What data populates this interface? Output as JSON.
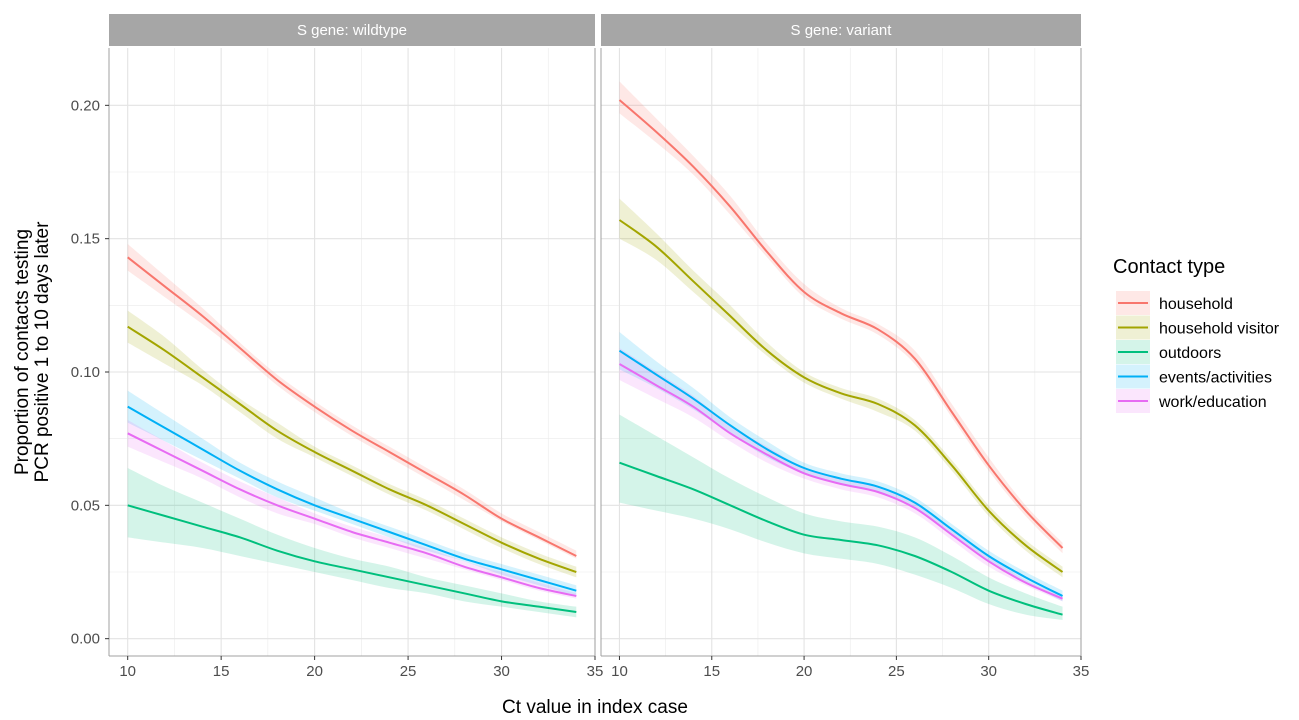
{
  "chart_data": {
    "type": "line",
    "xlabel": "Ct value in index case",
    "ylabel_line1": "Proportion of contacts testing",
    "ylabel_line2": "PCR positive 1 to 10 days later",
    "xlim": [
      9,
      35
    ],
    "ylim": [
      -0.0065,
      0.2215
    ],
    "x_ticks": [
      10,
      15,
      20,
      25,
      30,
      35
    ],
    "y_ticks": [
      0.0,
      0.05,
      0.1,
      0.15,
      0.2
    ],
    "y_tick_labels": [
      "0.00",
      "0.05",
      "0.10",
      "0.15",
      "0.20"
    ],
    "x": [
      10,
      12,
      14,
      16,
      18,
      20,
      22,
      24,
      26,
      28,
      30,
      32,
      34
    ],
    "legend": {
      "title": "Contact type",
      "position": "right",
      "entries": [
        "household",
        "household visitor",
        "outdoors",
        "events/activities",
        "work/education"
      ]
    },
    "colors": {
      "household": "#F8766D",
      "household visitor": "#A3A500",
      "outdoors": "#00BF7D",
      "events/activities": "#00B0F6",
      "work/education": "#E76BF3"
    },
    "grid": true,
    "panels": [
      {
        "strip_label": "S gene: wildtype",
        "series": [
          {
            "name": "household",
            "values": [
              0.143,
              0.132,
              0.121,
              0.109,
              0.097,
              0.087,
              0.078,
              0.07,
              0.062,
              0.054,
              0.045,
              0.038,
              0.031
            ],
            "lower": [
              0.138,
              0.128,
              0.118,
              0.107,
              0.095,
              0.085,
              0.076,
              0.068,
              0.06,
              0.052,
              0.044,
              0.037,
              0.03
            ],
            "upper": [
              0.148,
              0.136,
              0.124,
              0.111,
              0.099,
              0.089,
              0.08,
              0.072,
              0.064,
              0.056,
              0.047,
              0.04,
              0.033
            ]
          },
          {
            "name": "household visitor",
            "values": [
              0.117,
              0.108,
              0.098,
              0.088,
              0.078,
              0.07,
              0.063,
              0.056,
              0.05,
              0.043,
              0.036,
              0.03,
              0.025
            ],
            "lower": [
              0.111,
              0.103,
              0.095,
              0.085,
              0.075,
              0.068,
              0.061,
              0.054,
              0.048,
              0.041,
              0.034,
              0.028,
              0.023
            ],
            "upper": [
              0.123,
              0.113,
              0.101,
              0.09,
              0.081,
              0.072,
              0.065,
              0.058,
              0.052,
              0.045,
              0.038,
              0.032,
              0.027
            ]
          },
          {
            "name": "outdoors",
            "values": [
              0.05,
              0.046,
              0.042,
              0.038,
              0.033,
              0.029,
              0.026,
              0.023,
              0.02,
              0.017,
              0.014,
              0.012,
              0.01
            ],
            "lower": [
              0.038,
              0.036,
              0.034,
              0.031,
              0.028,
              0.025,
              0.022,
              0.019,
              0.017,
              0.014,
              0.012,
              0.01,
              0.008
            ],
            "upper": [
              0.064,
              0.057,
              0.051,
              0.045,
              0.039,
              0.034,
              0.03,
              0.027,
              0.023,
              0.02,
              0.017,
              0.014,
              0.012
            ]
          },
          {
            "name": "events/activities",
            "values": [
              0.087,
              0.079,
              0.071,
              0.063,
              0.056,
              0.05,
              0.045,
              0.04,
              0.035,
              0.03,
              0.026,
              0.022,
              0.018
            ],
            "lower": [
              0.081,
              0.074,
              0.067,
              0.06,
              0.053,
              0.048,
              0.043,
              0.038,
              0.033,
              0.029,
              0.024,
              0.02,
              0.016
            ],
            "upper": [
              0.093,
              0.084,
              0.075,
              0.066,
              0.059,
              0.053,
              0.047,
              0.042,
              0.037,
              0.032,
              0.028,
              0.024,
              0.02
            ]
          },
          {
            "name": "work/education",
            "values": [
              0.077,
              0.07,
              0.063,
              0.056,
              0.05,
              0.045,
              0.04,
              0.036,
              0.032,
              0.027,
              0.023,
              0.019,
              0.016
            ],
            "lower": [
              0.072,
              0.066,
              0.06,
              0.053,
              0.047,
              0.043,
              0.038,
              0.034,
              0.03,
              0.026,
              0.022,
              0.018,
              0.015
            ],
            "upper": [
              0.082,
              0.074,
              0.066,
              0.059,
              0.053,
              0.047,
              0.042,
              0.038,
              0.034,
              0.029,
              0.025,
              0.021,
              0.017
            ]
          }
        ]
      },
      {
        "strip_label": "S gene: variant",
        "series": [
          {
            "name": "household",
            "values": [
              0.202,
              0.19,
              0.177,
              0.162,
              0.145,
              0.13,
              0.122,
              0.116,
              0.105,
              0.085,
              0.065,
              0.048,
              0.034
            ],
            "lower": [
              0.197,
              0.186,
              0.174,
              0.159,
              0.143,
              0.128,
              0.12,
              0.114,
              0.103,
              0.083,
              0.063,
              0.046,
              0.032
            ],
            "upper": [
              0.209,
              0.195,
              0.181,
              0.166,
              0.148,
              0.133,
              0.124,
              0.118,
              0.108,
              0.088,
              0.068,
              0.05,
              0.036
            ]
          },
          {
            "name": "household visitor",
            "values": [
              0.157,
              0.147,
              0.134,
              0.121,
              0.108,
              0.098,
              0.092,
              0.088,
              0.08,
              0.065,
              0.048,
              0.035,
              0.025
            ],
            "lower": [
              0.15,
              0.142,
              0.13,
              0.118,
              0.106,
              0.096,
              0.09,
              0.085,
              0.078,
              0.063,
              0.046,
              0.033,
              0.023
            ],
            "upper": [
              0.165,
              0.152,
              0.138,
              0.125,
              0.111,
              0.1,
              0.094,
              0.09,
              0.082,
              0.067,
              0.05,
              0.037,
              0.027
            ]
          },
          {
            "name": "outdoors",
            "values": [
              0.066,
              0.061,
              0.056,
              0.05,
              0.044,
              0.039,
              0.037,
              0.035,
              0.031,
              0.025,
              0.018,
              0.013,
              0.009
            ],
            "lower": [
              0.051,
              0.048,
              0.045,
              0.041,
              0.036,
              0.032,
              0.03,
              0.028,
              0.024,
              0.019,
              0.013,
              0.009,
              0.007
            ],
            "upper": [
              0.084,
              0.076,
              0.068,
              0.06,
              0.053,
              0.047,
              0.044,
              0.042,
              0.038,
              0.031,
              0.023,
              0.017,
              0.012
            ]
          },
          {
            "name": "events/activities",
            "values": [
              0.108,
              0.099,
              0.09,
              0.08,
              0.071,
              0.064,
              0.06,
              0.057,
              0.051,
              0.041,
              0.031,
              0.023,
              0.016
            ],
            "lower": [
              0.101,
              0.094,
              0.086,
              0.077,
              0.068,
              0.062,
              0.058,
              0.055,
              0.049,
              0.039,
              0.029,
              0.021,
              0.014
            ],
            "upper": [
              0.115,
              0.104,
              0.094,
              0.083,
              0.074,
              0.066,
              0.062,
              0.059,
              0.053,
              0.043,
              0.033,
              0.025,
              0.018
            ]
          },
          {
            "name": "work/education",
            "values": [
              0.103,
              0.095,
              0.087,
              0.077,
              0.069,
              0.062,
              0.058,
              0.055,
              0.049,
              0.039,
              0.029,
              0.021,
              0.015
            ],
            "lower": [
              0.097,
              0.09,
              0.083,
              0.074,
              0.066,
              0.06,
              0.056,
              0.053,
              0.047,
              0.037,
              0.027,
              0.02,
              0.014
            ],
            "upper": [
              0.109,
              0.1,
              0.091,
              0.08,
              0.072,
              0.064,
              0.06,
              0.057,
              0.051,
              0.041,
              0.031,
              0.022,
              0.016
            ]
          }
        ]
      }
    ]
  }
}
